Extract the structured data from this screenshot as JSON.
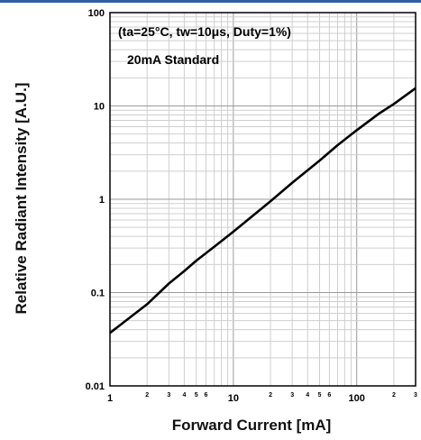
{
  "chart_data": {
    "type": "line",
    "x_scale": "log",
    "y_scale": "log",
    "xlim": [
      1,
      300
    ],
    "ylim": [
      0.01,
      100
    ],
    "xlabel": "Forward Current [mA]",
    "ylabel": "Relative Radiant Intensity [A.U.]",
    "grid": true,
    "x_major_ticks": [
      {
        "value": 1,
        "label": "1"
      },
      {
        "value": 10,
        "label": "10"
      },
      {
        "value": 100,
        "label": "100"
      }
    ],
    "x_minor_labels": [
      {
        "value": 2,
        "label": "2"
      },
      {
        "value": 3,
        "label": "3"
      },
      {
        "value": 4,
        "label": "4"
      },
      {
        "value": 5,
        "label": "5"
      },
      {
        "value": 6,
        "label": "6"
      },
      {
        "value": 20,
        "label": "2"
      },
      {
        "value": 30,
        "label": "3"
      },
      {
        "value": 40,
        "label": "4"
      },
      {
        "value": 50,
        "label": "5"
      },
      {
        "value": 60,
        "label": "6"
      },
      {
        "value": 200,
        "label": "2"
      },
      {
        "value": 300,
        "label": "3"
      }
    ],
    "y_ticks": [
      {
        "value": 100,
        "label": "100"
      },
      {
        "value": 10,
        "label": "10"
      },
      {
        "value": 1,
        "label": "1"
      },
      {
        "value": 0.1,
        "label": "0.1"
      },
      {
        "value": 0.01,
        "label": "0.01"
      }
    ],
    "annotations": [
      "(ta=25°C, tw=10μs, Duty=1%)",
      "20mA Standard"
    ],
    "series": [
      {
        "color": "#000000",
        "x": [
          1,
          2,
          3,
          4,
          5,
          7,
          10,
          20,
          30,
          50,
          70,
          100,
          150,
          200,
          300
        ],
        "y": [
          0.037,
          0.075,
          0.125,
          0.17,
          0.22,
          0.31,
          0.45,
          0.95,
          1.5,
          2.6,
          3.8,
          5.5,
          8.2,
          10.5,
          15.5
        ]
      }
    ]
  }
}
